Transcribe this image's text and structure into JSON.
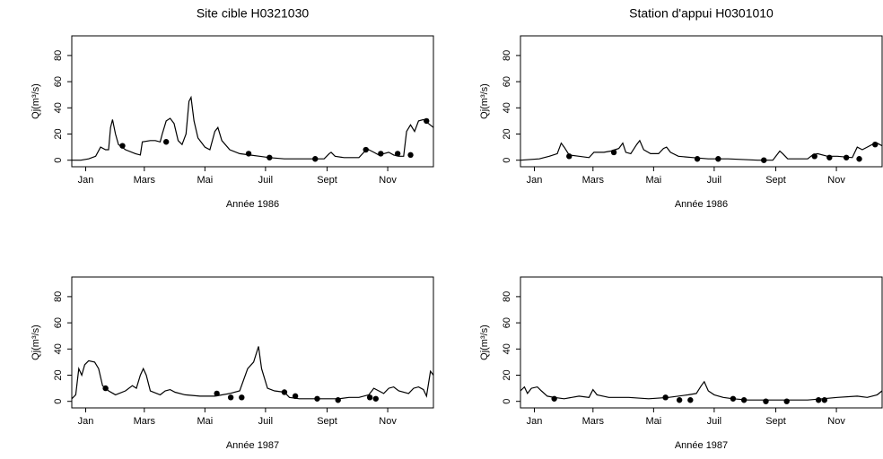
{
  "chart_data": [
    {
      "type": "line",
      "title": "Site cible H0321030",
      "xlabel": "Année 1986",
      "ylabel": "Qj(m³/s)",
      "xlim": [
        1,
        365
      ],
      "ylim": [
        -5,
        95
      ],
      "xticks": [
        {
          "value": 15,
          "label": "Jan"
        },
        {
          "value": 74,
          "label": "Mars"
        },
        {
          "value": 135,
          "label": "Mai"
        },
        {
          "value": 196,
          "label": "Juil"
        },
        {
          "value": 258,
          "label": "Sept"
        },
        {
          "value": 319,
          "label": "Nov"
        }
      ],
      "yticks": [
        0,
        20,
        40,
        60,
        80
      ],
      "series": [
        {
          "color": "#000000",
          "marker": "line",
          "x": [
            1,
            10,
            18,
            25,
            30,
            35,
            38,
            40,
            42,
            45,
            48,
            55,
            65,
            70,
            72,
            80,
            85,
            90,
            92,
            96,
            100,
            104,
            108,
            112,
            116,
            119,
            121,
            124,
            128,
            135,
            140,
            145,
            148,
            152,
            160,
            170,
            180,
            190,
            200,
            215,
            230,
            245,
            255,
            260,
            262,
            266,
            275,
            290,
            295,
            300,
            305,
            310,
            315,
            320,
            325,
            330,
            335,
            338,
            342,
            346,
            350,
            355,
            360,
            365
          ],
          "values": [
            0,
            0,
            1,
            3,
            10,
            8,
            8,
            25,
            31,
            20,
            12,
            8,
            5,
            4,
            14,
            15,
            15,
            14,
            20,
            30,
            32,
            28,
            15,
            12,
            20,
            45,
            48,
            30,
            17,
            10,
            8,
            22,
            25,
            15,
            8,
            5,
            4,
            3,
            2,
            1,
            1,
            1,
            1,
            5,
            6,
            3,
            2,
            2,
            6,
            8,
            6,
            4,
            5,
            6,
            4,
            3,
            3,
            22,
            27,
            22,
            30,
            31,
            28,
            25
          ]
        },
        {
          "color": "#000000",
          "marker": "dot",
          "x": [
            52,
            96,
            179,
            200,
            246,
            297,
            312,
            329,
            342,
            358
          ],
          "values": [
            11,
            14,
            5,
            2,
            1,
            8,
            5,
            5,
            4,
            30
          ]
        }
      ]
    },
    {
      "type": "line",
      "title": "Station d'appui H0301010",
      "xlabel": "Année 1986",
      "ylabel": "Qj(m³/s)",
      "xlim": [
        1,
        365
      ],
      "ylim": [
        -5,
        95
      ],
      "xticks": [
        {
          "value": 15,
          "label": "Jan"
        },
        {
          "value": 74,
          "label": "Mars"
        },
        {
          "value": 135,
          "label": "Mai"
        },
        {
          "value": 196,
          "label": "Juil"
        },
        {
          "value": 258,
          "label": "Sept"
        },
        {
          "value": 319,
          "label": "Nov"
        }
      ],
      "yticks": [
        0,
        20,
        40,
        60,
        80
      ],
      "series": [
        {
          "color": "#000000",
          "marker": "line",
          "x": [
            1,
            20,
            30,
            38,
            42,
            45,
            50,
            60,
            70,
            75,
            85,
            92,
            100,
            104,
            107,
            112,
            118,
            121,
            125,
            132,
            140,
            145,
            148,
            152,
            160,
            175,
            190,
            210,
            240,
            255,
            262,
            265,
            270,
            290,
            295,
            300,
            310,
            320,
            335,
            340,
            345,
            350,
            355,
            360,
            365
          ],
          "values": [
            0,
            1,
            3,
            5,
            13,
            10,
            4,
            3,
            2,
            6,
            6,
            7,
            9,
            13,
            6,
            5,
            12,
            15,
            8,
            5,
            5,
            9,
            10,
            6,
            3,
            2,
            1,
            1,
            0,
            0,
            7,
            5,
            1,
            1,
            4,
            5,
            3,
            3,
            2,
            10,
            8,
            10,
            12,
            13,
            11
          ]
        },
        {
          "color": "#000000",
          "marker": "dot",
          "x": [
            50,
            95,
            179,
            200,
            246,
            297,
            312,
            329,
            342,
            358
          ],
          "values": [
            3,
            6,
            1,
            1,
            0,
            3,
            2,
            2,
            1,
            12
          ]
        }
      ]
    },
    {
      "type": "line",
      "xlabel": "Année 1987",
      "ylabel": "Qj(m³/s)",
      "xlim": [
        1,
        365
      ],
      "ylim": [
        -5,
        95
      ],
      "xticks": [
        {
          "value": 15,
          "label": "Jan"
        },
        {
          "value": 74,
          "label": "Mars"
        },
        {
          "value": 135,
          "label": "Mai"
        },
        {
          "value": 196,
          "label": "Juil"
        },
        {
          "value": 258,
          "label": "Sept"
        },
        {
          "value": 319,
          "label": "Nov"
        }
      ],
      "yticks": [
        0,
        20,
        40,
        60,
        80
      ],
      "series": [
        {
          "color": "#000000",
          "marker": "line",
          "x": [
            1,
            5,
            8,
            11,
            14,
            18,
            24,
            28,
            32,
            38,
            45,
            55,
            62,
            66,
            70,
            73,
            76,
            80,
            90,
            95,
            100,
            105,
            115,
            130,
            145,
            160,
            170,
            178,
            184,
            189,
            192,
            198,
            205,
            215,
            220,
            230,
            250,
            270,
            280,
            290,
            300,
            305,
            310,
            315,
            320,
            325,
            330,
            340,
            345,
            350,
            355,
            358,
            362,
            365
          ],
          "values": [
            2,
            5,
            25,
            20,
            28,
            31,
            30,
            25,
            12,
            8,
            5,
            8,
            12,
            10,
            20,
            25,
            20,
            8,
            5,
            8,
            9,
            7,
            5,
            4,
            4,
            6,
            8,
            25,
            30,
            42,
            25,
            10,
            8,
            7,
            3,
            2,
            2,
            2,
            3,
            3,
            5,
            10,
            8,
            6,
            10,
            11,
            8,
            6,
            10,
            11,
            9,
            4,
            23,
            20
          ]
        },
        {
          "color": "#000000",
          "marker": "dot",
          "x": [
            35,
            147,
            161,
            172,
            215,
            226,
            248,
            269,
            301,
            307
          ],
          "values": [
            10,
            6,
            3,
            3,
            7,
            4,
            2,
            1,
            3,
            2
          ]
        }
      ]
    },
    {
      "type": "line",
      "xlabel": "Année 1987",
      "ylabel": "Qj(m³/s)",
      "xlim": [
        1,
        365
      ],
      "ylim": [
        -5,
        95
      ],
      "xticks": [
        {
          "value": 15,
          "label": "Jan"
        },
        {
          "value": 74,
          "label": "Mars"
        },
        {
          "value": 135,
          "label": "Mai"
        },
        {
          "value": 196,
          "label": "Juil"
        },
        {
          "value": 258,
          "label": "Sept"
        },
        {
          "value": 319,
          "label": "Nov"
        }
      ],
      "yticks": [
        0,
        20,
        40,
        60,
        80
      ],
      "series": [
        {
          "color": "#000000",
          "marker": "line",
          "x": [
            1,
            5,
            8,
            12,
            18,
            22,
            28,
            35,
            45,
            60,
            70,
            74,
            78,
            90,
            110,
            130,
            150,
            170,
            178,
            183,
            186,
            190,
            196,
            205,
            215,
            230,
            250,
            270,
            290,
            305,
            320,
            340,
            350,
            360,
            365
          ],
          "values": [
            8,
            11,
            6,
            10,
            11,
            8,
            4,
            3,
            2,
            4,
            3,
            9,
            5,
            3,
            3,
            2,
            3,
            5,
            6,
            12,
            15,
            8,
            5,
            3,
            2,
            1,
            1,
            1,
            1,
            2,
            3,
            4,
            3,
            5,
            8
          ]
        },
        {
          "color": "#000000",
          "marker": "dot",
          "x": [
            35,
            147,
            161,
            172,
            215,
            226,
            248,
            269,
            301,
            307
          ],
          "values": [
            2,
            3,
            1,
            1,
            2,
            1,
            0,
            0,
            1,
            1
          ]
        }
      ]
    }
  ]
}
